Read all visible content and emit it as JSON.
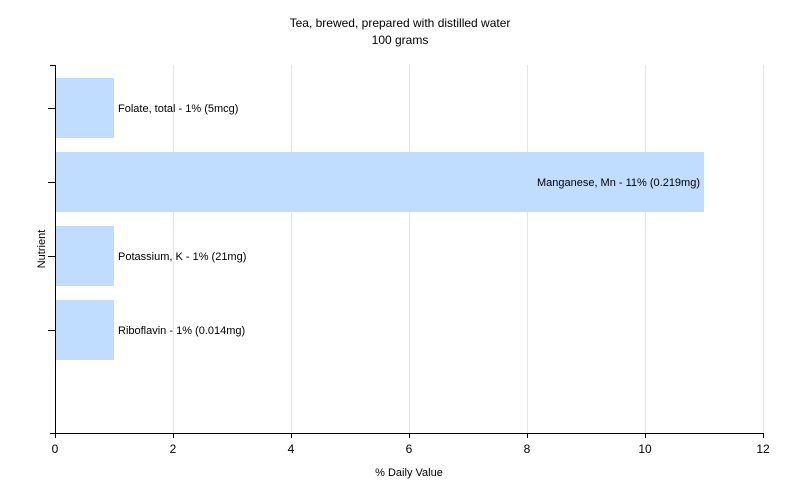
{
  "chart_data": {
    "type": "bar",
    "orientation": "horizontal",
    "title": "Tea, brewed, prepared with distilled water",
    "subtitle": "100 grams",
    "xlabel": "% Daily Value",
    "ylabel": "Nutrient",
    "xlim": [
      0,
      12
    ],
    "x_ticks": [
      "0",
      "2",
      "4",
      "6",
      "8",
      "10",
      "12"
    ],
    "grid": true,
    "bar_color": "#c0dcff",
    "categories": [
      "Folate, total",
      "Manganese, Mn",
      "Potassium, K",
      "Riboflavin"
    ],
    "values": [
      1,
      11,
      1,
      1
    ],
    "data_labels": [
      "Folate, total - 1% (5mcg)",
      "Manganese, Mn - 11% (0.219mg)",
      "Potassium, K - 1% (21mg)",
      "Riboflavin - 1% (0.014mg)"
    ],
    "label_position": [
      "outside",
      "inside",
      "outside",
      "outside"
    ]
  }
}
